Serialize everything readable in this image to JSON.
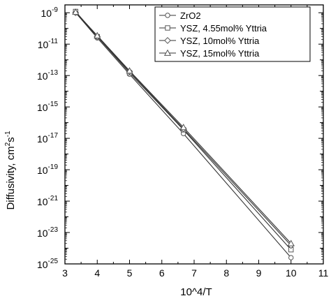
{
  "chart_data": {
    "type": "line",
    "title": "",
    "xlabel": "10^4/T",
    "ylabel_main": "Diffusivity, cm",
    "ylabel_sup1": "2",
    "ylabel_mid": "s",
    "ylabel_sup2": "-1",
    "xlim": [
      3,
      11
    ],
    "ylim_log10": [
      -25,
      -8.5
    ],
    "y_scale": "log",
    "grid": false,
    "legend_position": "top-right",
    "x_ticks": [
      "3",
      "4",
      "5",
      "6",
      "7",
      "8",
      "9",
      "10",
      "11"
    ],
    "y_ticks": [
      {
        "base": "10",
        "exp": "-9"
      },
      {
        "base": "10",
        "exp": "-11"
      },
      {
        "base": "10",
        "exp": "-13"
      },
      {
        "base": "10",
        "exp": "-15"
      },
      {
        "base": "10",
        "exp": "-17"
      },
      {
        "base": "10",
        "exp": "-19"
      },
      {
        "base": "10",
        "exp": "-21"
      },
      {
        "base": "10",
        "exp": "-23"
      },
      {
        "base": "10",
        "exp": "-25"
      }
    ],
    "x": [
      3.33,
      4.0,
      5.0,
      6.67,
      10.0
    ],
    "series": [
      {
        "name": "ZrO2",
        "marker": "circle",
        "values": [
          1e-09,
          2.5e-11,
          1.2e-13,
          2e-17,
          2.5e-25
        ]
      },
      {
        "name": "YSZ, 4.55mol% Yttria",
        "marker": "square",
        "values": [
          1.2e-09,
          3e-11,
          1.5e-13,
          3.5e-17,
          8e-25
        ]
      },
      {
        "name": "YSZ, 10mol% Yttria",
        "marker": "diamond",
        "values": [
          1e-09,
          3e-11,
          1.8e-13,
          4e-17,
          1.5e-24
        ]
      },
      {
        "name": "YSZ, 15mol% Yttria",
        "marker": "triangle",
        "values": [
          1.1e-09,
          3.5e-11,
          2e-13,
          5e-17,
          2e-24
        ]
      }
    ]
  }
}
